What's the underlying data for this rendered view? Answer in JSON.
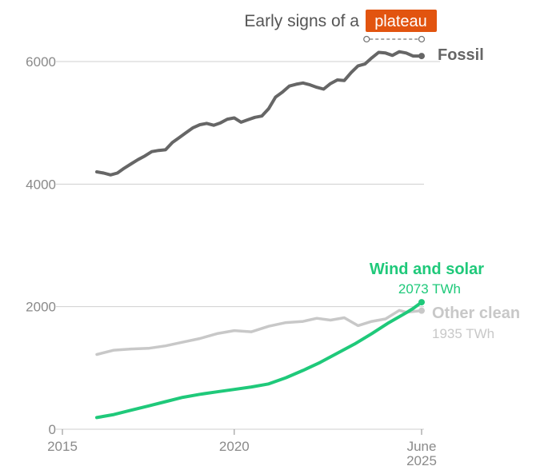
{
  "chart_data": {
    "type": "line",
    "title_prefix": "Early signs of a",
    "title_highlight": "plateau",
    "x_ticks": [
      {
        "value": 2015,
        "label": "2015"
      },
      {
        "value": 2020,
        "label": "2020"
      },
      {
        "value": 2025.45,
        "label": "June",
        "label2": "2025"
      }
    ],
    "y_ticks": [
      0,
      2000,
      4000,
      6000
    ],
    "xlim": [
      2015,
      2025.45
    ],
    "ylim": [
      0,
      6000
    ],
    "plateau_marker": {
      "x_start": 2023.85,
      "x_end": 2025.45,
      "y": 6380
    },
    "colors": {
      "fossil": "#666666",
      "wind_solar": "#1fc97a",
      "other": "#c8c8c8",
      "highlight": "#e2540f"
    },
    "series": [
      {
        "key": "fossil",
        "name": "Fossil",
        "end_value_label": "",
        "x": [
          2016.0,
          2016.2,
          2016.4,
          2016.6,
          2016.8,
          2017.0,
          2017.2,
          2017.4,
          2017.6,
          2017.8,
          2018.0,
          2018.2,
          2018.4,
          2018.6,
          2018.8,
          2019.0,
          2019.2,
          2019.4,
          2019.6,
          2019.8,
          2020.0,
          2020.2,
          2020.4,
          2020.6,
          2020.8,
          2021.0,
          2021.2,
          2021.4,
          2021.6,
          2021.8,
          2022.0,
          2022.2,
          2022.4,
          2022.6,
          2022.8,
          2023.0,
          2023.2,
          2023.4,
          2023.6,
          2023.8,
          2024.0,
          2024.2,
          2024.4,
          2024.6,
          2024.8,
          2025.0,
          2025.2,
          2025.45
        ],
        "values": [
          4200,
          4180,
          4150,
          4180,
          4260,
          4330,
          4400,
          4460,
          4530,
          4550,
          4560,
          4680,
          4760,
          4840,
          4920,
          4970,
          4990,
          4960,
          5000,
          5060,
          5080,
          5010,
          5050,
          5090,
          5110,
          5230,
          5420,
          5500,
          5600,
          5630,
          5650,
          5620,
          5580,
          5550,
          5640,
          5700,
          5690,
          5820,
          5930,
          5960,
          6060,
          6150,
          6140,
          6100,
          6160,
          6140,
          6090,
          6090
        ]
      },
      {
        "key": "wind_solar",
        "name": "Wind and solar",
        "end_value_label": "2073 TWh",
        "x": [
          2016.0,
          2016.5,
          2017.0,
          2017.5,
          2018.0,
          2018.5,
          2019.0,
          2019.5,
          2020.0,
          2020.5,
          2021.0,
          2021.5,
          2022.0,
          2022.5,
          2023.0,
          2023.5,
          2024.0,
          2024.5,
          2025.0,
          2025.2,
          2025.45
        ],
        "values": [
          190,
          240,
          310,
          380,
          450,
          520,
          570,
          610,
          650,
          690,
          740,
          840,
          960,
          1090,
          1240,
          1390,
          1560,
          1740,
          1900,
          1970,
          2073
        ]
      },
      {
        "key": "other",
        "name": "Other clean",
        "end_value_label": "1935 TWh",
        "x": [
          2016.0,
          2016.5,
          2017.0,
          2017.5,
          2018.0,
          2018.5,
          2019.0,
          2019.5,
          2020.0,
          2020.5,
          2021.0,
          2021.5,
          2022.0,
          2022.4,
          2022.8,
          2023.2,
          2023.6,
          2024.0,
          2024.4,
          2024.8,
          2025.0,
          2025.45
        ],
        "values": [
          1220,
          1290,
          1310,
          1320,
          1360,
          1420,
          1480,
          1560,
          1610,
          1590,
          1680,
          1740,
          1760,
          1810,
          1780,
          1820,
          1690,
          1760,
          1800,
          1940,
          1910,
          1935
        ]
      }
    ]
  }
}
